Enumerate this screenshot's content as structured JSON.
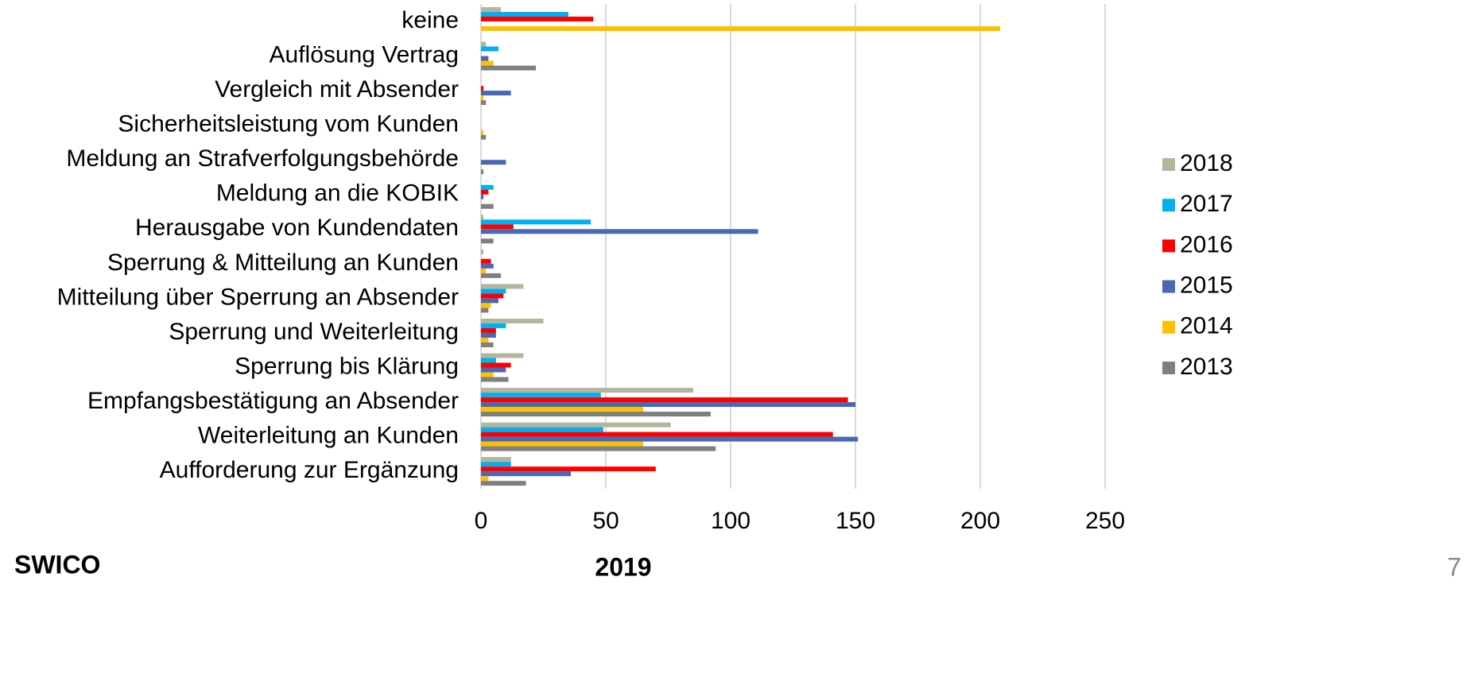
{
  "chart_data": {
    "type": "barh",
    "categories": [
      "keine",
      "Auflösung Vertrag",
      "Vergleich mit Absender",
      "Sicherheitsleistung vom Kunden",
      "Meldung an Strafverfolgungsbehörde",
      "Meldung an die KOBIK",
      "Herausgabe von Kundendaten",
      "Sperrung & Mitteilung an Kunden",
      "Mitteilung über Sperrung an Absender",
      "Sperrung und Weiterleitung",
      "Sperrung bis Klärung",
      "Empfangsbestätigung an Absender",
      "Weiterleitung an Kunden",
      "Aufforderung zur Ergänzung"
    ],
    "series": [
      {
        "name": "2018",
        "color": "#b5b59b",
        "values": [
          8,
          2,
          0,
          0,
          0,
          0,
          1,
          1,
          17,
          25,
          17,
          85,
          76,
          12
        ]
      },
      {
        "name": "2017",
        "color": "#00b0f0",
        "values": [
          35,
          7,
          0,
          0,
          0,
          5,
          44,
          0,
          10,
          10,
          6,
          48,
          49,
          12
        ]
      },
      {
        "name": "2016",
        "color": "#ff0000",
        "values": [
          45,
          0,
          1,
          0,
          0,
          3,
          13,
          4,
          9,
          6,
          12,
          147,
          141,
          70
        ]
      },
      {
        "name": "2015",
        "color": "#4a69b5",
        "values": [
          0,
          3,
          12,
          0,
          10,
          1,
          111,
          5,
          7,
          6,
          10,
          150,
          151,
          36
        ]
      },
      {
        "name": "2014",
        "color": "#ffc000",
        "values": [
          208,
          5,
          1,
          1,
          0,
          0,
          0,
          2,
          4,
          3,
          5,
          65,
          65,
          3
        ]
      },
      {
        "name": "2013",
        "color": "#7f7f7f",
        "values": [
          0,
          22,
          2,
          2,
          1,
          5,
          5,
          8,
          3,
          5,
          11,
          92,
          94,
          18
        ]
      }
    ],
    "xlim": [
      0,
      250
    ],
    "xticks": [
      0,
      50,
      100,
      150,
      200,
      250
    ],
    "grid": true,
    "legend": "right"
  },
  "footer": {
    "logo": "SWICO",
    "year": "2019",
    "page": "7"
  }
}
